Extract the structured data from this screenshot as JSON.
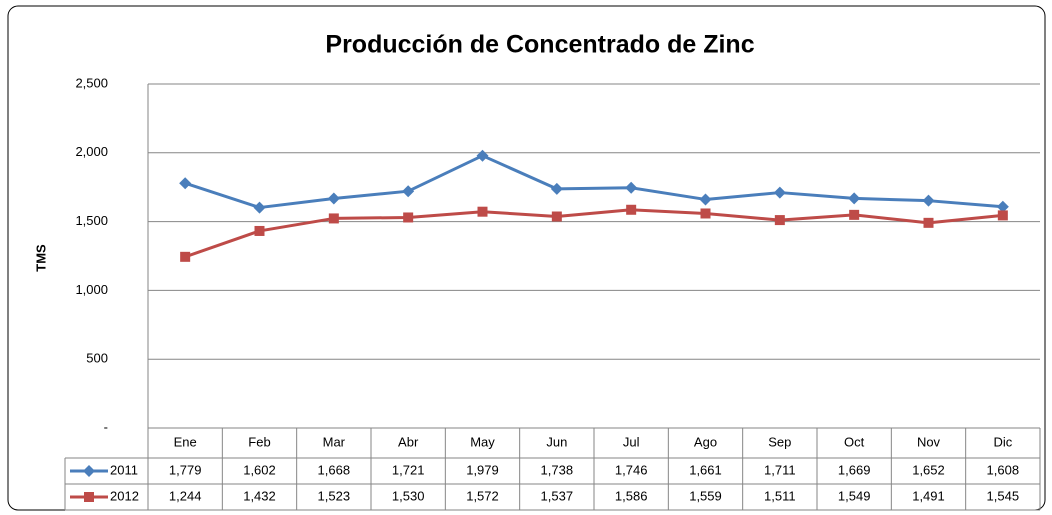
{
  "chart_data": {
    "type": "line",
    "title": "Producción de Concentrado de Zinc",
    "y_label": "TMS",
    "categories": [
      "Ene",
      "Feb",
      "Mar",
      "Abr",
      "May",
      "Jun",
      "Jul",
      "Ago",
      "Sep",
      "Oct",
      "Nov",
      "Dic"
    ],
    "series": [
      {
        "name": "2011",
        "color": "#4a7ebb",
        "marker": "diamond",
        "values": [
          1779,
          1602,
          1668,
          1721,
          1979,
          1738,
          1746,
          1661,
          1711,
          1669,
          1652,
          1608
        ],
        "value_labels": [
          "1,779",
          "1,602",
          "1,668",
          "1,721",
          "1,979",
          "1,738",
          "1,746",
          "1,661",
          "1,711",
          "1,669",
          "1,652",
          "1,608"
        ]
      },
      {
        "name": "2012",
        "color": "#be4b48",
        "marker": "square",
        "values": [
          1244,
          1432,
          1523,
          1530,
          1572,
          1537,
          1586,
          1559,
          1511,
          1549,
          1491,
          1545
        ],
        "value_labels": [
          "1,244",
          "1,432",
          "1,523",
          "1,530",
          "1,572",
          "1,537",
          "1,586",
          "1,559",
          "1,511",
          "1,549",
          "1,491",
          "1,545"
        ]
      }
    ],
    "ylim": [
      0,
      2500
    ],
    "yticks": [
      {
        "value": 0,
        "label": "-"
      },
      {
        "value": 500,
        "label": "500"
      },
      {
        "value": 1000,
        "label": "1,000"
      },
      {
        "value": 1500,
        "label": "1,500"
      },
      {
        "value": 2000,
        "label": "2,000"
      },
      {
        "value": 2500,
        "label": "2,500"
      }
    ],
    "grid": true
  }
}
